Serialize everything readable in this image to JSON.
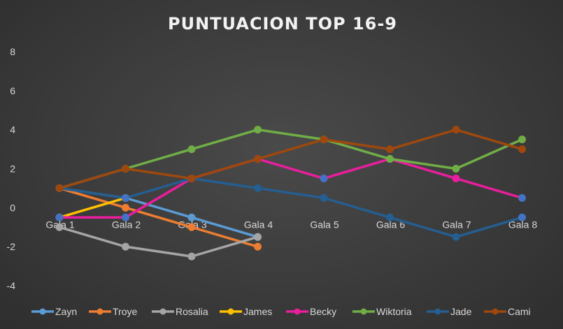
{
  "chart_data": {
    "type": "line",
    "title": "PUNTUACION TOP 16-9",
    "xlabel": "",
    "ylabel": "",
    "categories": [
      "Gala 1",
      "Gala 2",
      "Gala 3",
      "Gala 4",
      "Gala 5",
      "Gala 6",
      "Gala 7",
      "Gala 8"
    ],
    "ylim": [
      -4,
      8
    ],
    "yticks": [
      8,
      6,
      4,
      2,
      0,
      -2,
      -4
    ],
    "grid": false,
    "legend_position": "bottom",
    "series": [
      {
        "name": "Zayn",
        "color": "#5b9bd5",
        "values": [
          1,
          0.5,
          -0.5,
          -1.5,
          null,
          null,
          null,
          null
        ]
      },
      {
        "name": "Troye",
        "color": "#ed7d31",
        "values": [
          1,
          0,
          -1,
          -2,
          null,
          null,
          null,
          null
        ]
      },
      {
        "name": "Rosalia",
        "color": "#a5a5a5",
        "values": [
          -1,
          -2,
          -2.5,
          -1.5,
          null,
          null,
          null,
          null
        ]
      },
      {
        "name": "James",
        "color": "#ffc000",
        "values": [
          -0.5,
          0.5,
          null,
          null,
          null,
          null,
          null,
          null
        ]
      },
      {
        "name": "Becky",
        "color": "#e91e9c",
        "values": [
          -0.5,
          -0.5,
          1.5,
          2.5,
          1.5,
          2.5,
          1.5,
          0.5
        ]
      },
      {
        "name": "Wiktoria",
        "color": "#70ad47",
        "values": [
          1,
          2,
          3,
          4,
          3.5,
          2.5,
          2,
          3.5
        ]
      },
      {
        "name": "Jade",
        "color": "#255e91",
        "values": [
          1,
          0.5,
          1.5,
          1,
          0.5,
          -0.5,
          -1.5,
          -0.5
        ]
      },
      {
        "name": "Cami",
        "color": "#9e480e",
        "values": [
          1,
          2,
          1.5,
          2.5,
          3.5,
          3,
          4,
          3
        ]
      }
    ],
    "marker_colors": {
      "Becky": [
        "#4472c4",
        "#4472c4",
        "#e91e9c",
        "#e91e9c",
        "#4472c4",
        "#e91e9c",
        "#e91e9c",
        "#4472c4"
      ],
      "Jade": [
        "#255e91",
        "#4472c4",
        "#255e91",
        "#255e91",
        "#255e91",
        "#255e91",
        "#255e91",
        "#4472c4"
      ]
    }
  }
}
